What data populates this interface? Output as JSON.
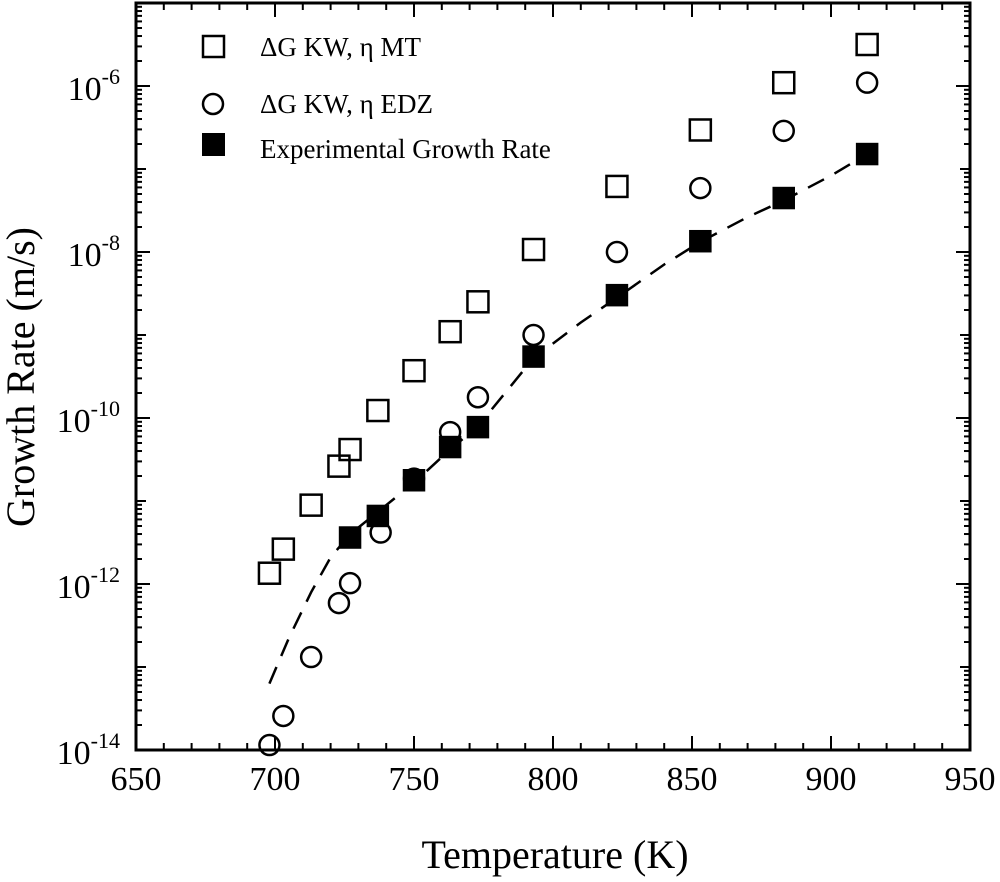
{
  "chart_data": {
    "type": "scatter",
    "title": "",
    "xlabel": "Temperature (K)",
    "ylabel": "Growth Rate (m/s)",
    "xlim": [
      650,
      950
    ],
    "ylim_log10": [
      -14,
      -5
    ],
    "yscale": "log",
    "grid": false,
    "legend_position": "top-left",
    "x_ticks": [
      650,
      700,
      750,
      800,
      850,
      900,
      950
    ],
    "x_tick_labels": [
      "650",
      "700",
      "750",
      "800",
      "850",
      "900",
      "950"
    ],
    "y_ticks_log10": [
      -14,
      -12,
      -10,
      -8,
      -6
    ],
    "y_tick_labels": [
      {
        "base": "10",
        "exp": "-14"
      },
      {
        "base": "10",
        "exp": "-12"
      },
      {
        "base": "10",
        "exp": "-10"
      },
      {
        "base": "10",
        "exp": "-8"
      },
      {
        "base": "10",
        "exp": "-6"
      }
    ],
    "series": [
      {
        "name": "ΔG KW, η MT",
        "marker": "open-square",
        "x": [
          698,
          703,
          713,
          723,
          727,
          737,
          750,
          763,
          773,
          793,
          823,
          853,
          883,
          913
        ],
        "log10_y": [
          -11.87,
          -11.58,
          -11.05,
          -10.58,
          -10.38,
          -9.91,
          -9.43,
          -8.96,
          -8.6,
          -7.97,
          -7.21,
          -6.53,
          -5.96,
          -5.5
        ]
      },
      {
        "name": "ΔG KW, η EDZ",
        "marker": "open-circle",
        "x": [
          698,
          703,
          713,
          723,
          727,
          738,
          750,
          763,
          773,
          793,
          823,
          853,
          883,
          913
        ],
        "log10_y": [
          -13.94,
          -13.59,
          -12.88,
          -12.23,
          -11.99,
          -11.38,
          -10.73,
          -10.17,
          -9.75,
          -9.0,
          -8.0,
          -7.23,
          -6.54,
          -5.96
        ]
      },
      {
        "name": "Experimental Growth Rate",
        "marker": "filled-square",
        "x": [
          727,
          737,
          750,
          763,
          773,
          793,
          823,
          853,
          883,
          913
        ],
        "log10_y": [
          -11.44,
          -11.18,
          -10.75,
          -10.35,
          -10.11,
          -9.26,
          -8.52,
          -7.87,
          -7.35,
          -6.82
        ]
      },
      {
        "name": "fit",
        "marker": "dashed-line",
        "x": [
          698,
          705,
          713,
          720,
          727,
          737,
          750,
          763,
          773,
          793,
          810,
          823,
          840,
          853,
          870,
          883,
          900,
          913
        ],
        "log10_y": [
          -13.2,
          -12.65,
          -12.1,
          -11.68,
          -11.4,
          -11.13,
          -10.78,
          -10.38,
          -10.1,
          -9.28,
          -8.85,
          -8.55,
          -8.15,
          -7.88,
          -7.58,
          -7.38,
          -7.08,
          -6.82
        ]
      }
    ]
  }
}
